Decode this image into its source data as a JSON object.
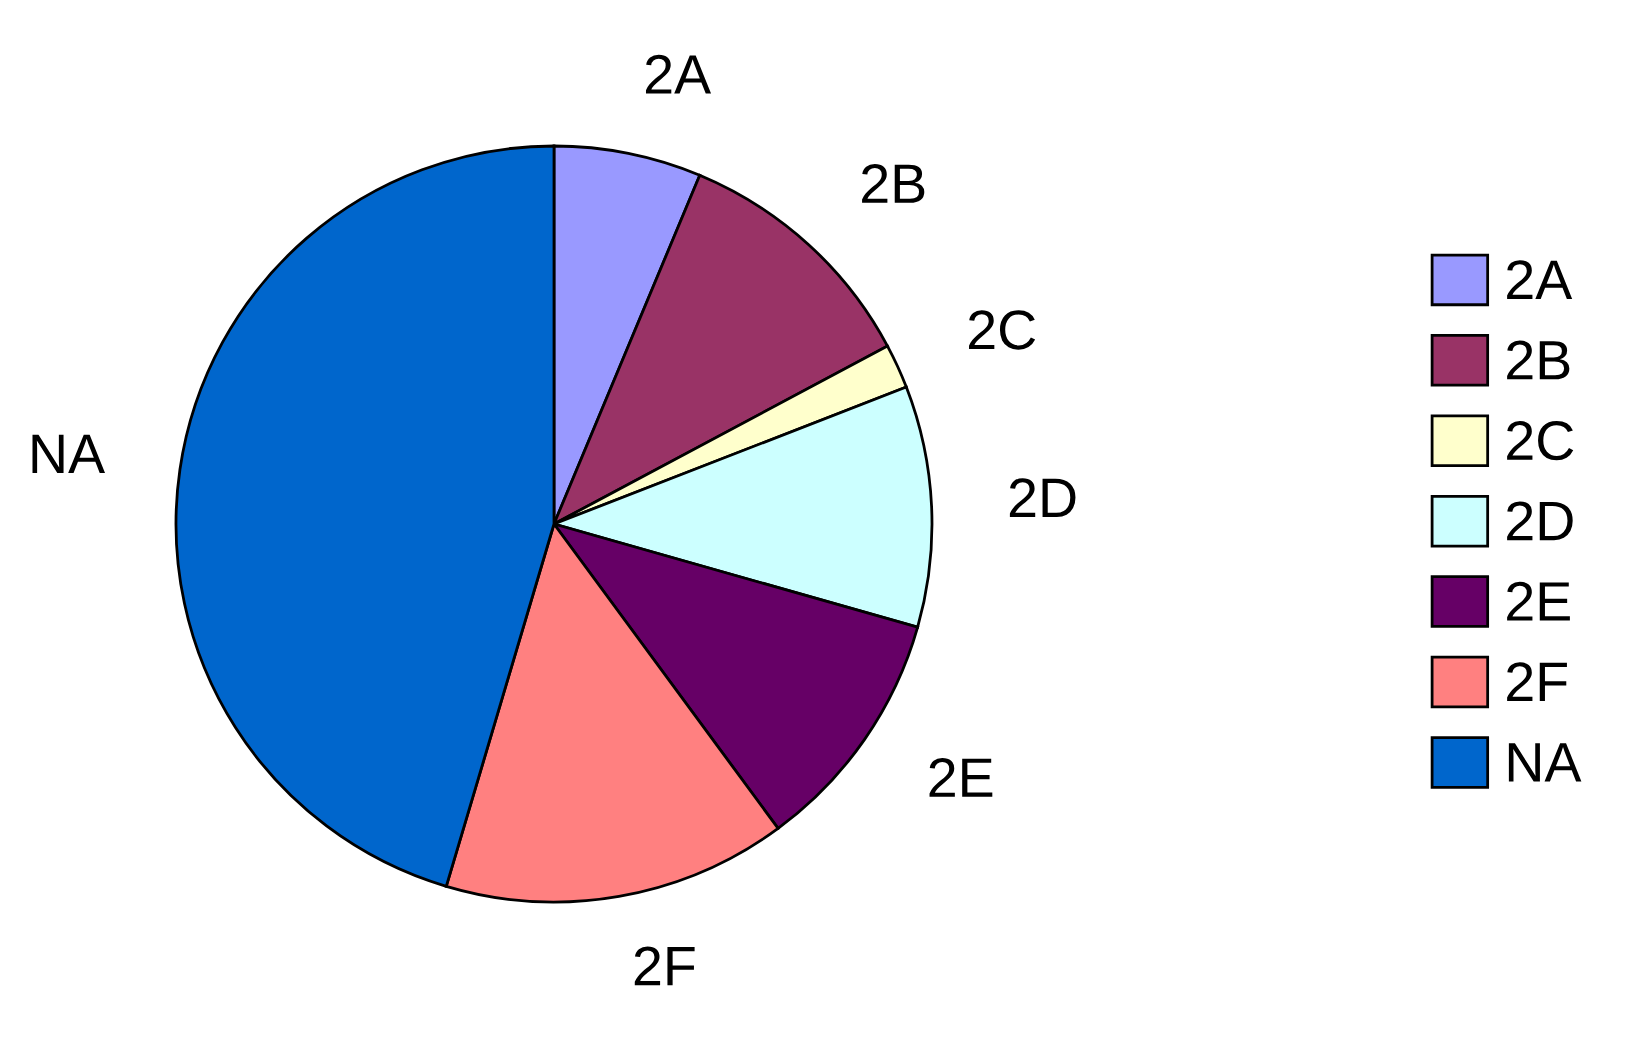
{
  "chart_data": {
    "type": "pie",
    "categories": [
      "2A",
      "2B",
      "2C",
      "2D",
      "2E",
      "2F",
      "NA"
    ],
    "values": [
      6.3,
      10.9,
      1.9,
      10.3,
      10.5,
      14.7,
      45.4
    ],
    "colors": [
      "#9999ff",
      "#993366",
      "#ffffcc",
      "#ccffff",
      "#660066",
      "#ff8080",
      "#0066cc"
    ],
    "legend": "right"
  }
}
